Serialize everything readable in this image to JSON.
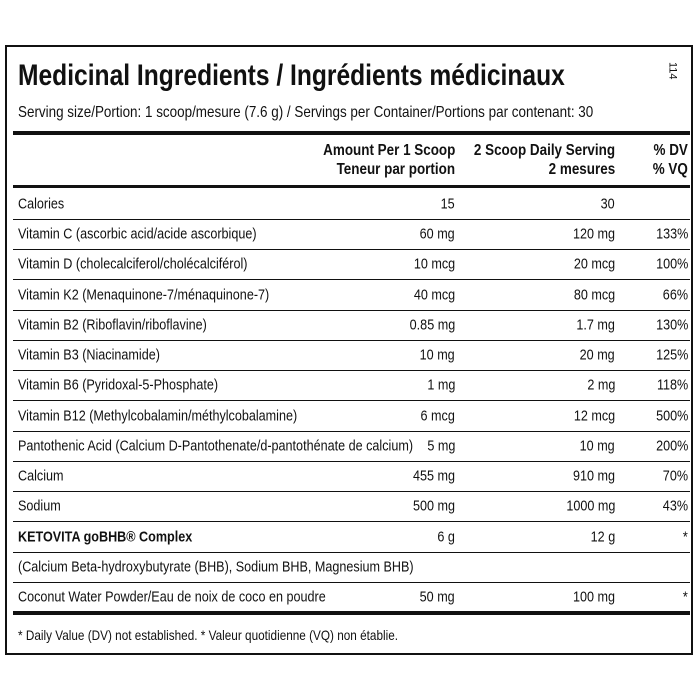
{
  "side_code": "114",
  "header": {
    "title": "Medicinal Ingredients / Ingrédients médicinaux",
    "serving": "Serving size/Portion: 1 scoop/mesure (7.6 g) / Servings per Container/Portions par contenant: 30"
  },
  "table": {
    "columns": [
      [
        "Amount Per 1 Scoop",
        "Teneur par portion"
      ],
      [
        "2 Scoop Daily Serving",
        "2 mesures"
      ],
      [
        "% DV",
        "% VQ"
      ]
    ],
    "rows": [
      {
        "name": "Calories",
        "amount": "15",
        "serving": "30"
      },
      {
        "name": "Vitamin C (ascorbic acid/acide ascorbique)",
        "amount": "60 mg",
        "serving": "120 mg",
        "dv": "133%"
      },
      {
        "name": "Vitamin D (cholecalciferol/cholécalciférol)",
        "amount": "10 mcg",
        "serving": "20 mcg",
        "dv": "100%"
      },
      {
        "name": "Vitamin K2 (Menaquinone-7/ménaquinone-7)",
        "amount": "40 mcg",
        "serving": "80 mcg",
        "dv": "66%"
      },
      {
        "name": "Vitamin B2 (Riboflavin/riboflavine)",
        "amount": "0.85 mg",
        "serving": "1.7 mg",
        "dv": "130%"
      },
      {
        "name": "Vitamin B3 (Niacinamide)",
        "amount": "10 mg",
        "serving": "20 mg",
        "dv": "125%"
      },
      {
        "name": "Vitamin B6 (Pyridoxal-5-Phosphate)",
        "amount": "1 mg",
        "serving": "2 mg",
        "dv": "118%"
      },
      {
        "name": "Vitamin B12 (Methylcobalamin/méthylcobalamine)",
        "amount": "6 mcg",
        "serving": "12 mcg",
        "dv": "500%"
      },
      {
        "name": "Pantothenic Acid (Calcium D-Pantothenate/d-pantothénate de calcium)",
        "amount": "5 mg",
        "serving": "10 mg",
        "dv": "200%"
      },
      {
        "name": "Calcium",
        "amount": "455 mg",
        "serving": "910 mg",
        "dv": "70%"
      },
      {
        "name": "Sodium",
        "amount": "500 mg",
        "serving": "1000 mg",
        "dv": "43%"
      },
      {
        "name": "KETOVITA goBHB® Complex",
        "bold": true,
        "amount": "6 g",
        "serving": "12 g",
        "dv": "*"
      },
      {
        "name": "(Calcium Beta-hydroxybutyrate (BHB), Sodium BHB, Magnesium BHB)"
      },
      {
        "name": "Coconut Water Powder/Eau de noix de coco en poudre",
        "amount": "50 mg",
        "serving": "100 mg",
        "dv": "*"
      }
    ]
  },
  "footnote": "* Daily Value (DV) not established. * Valeur quotidienne (VQ) non établie."
}
